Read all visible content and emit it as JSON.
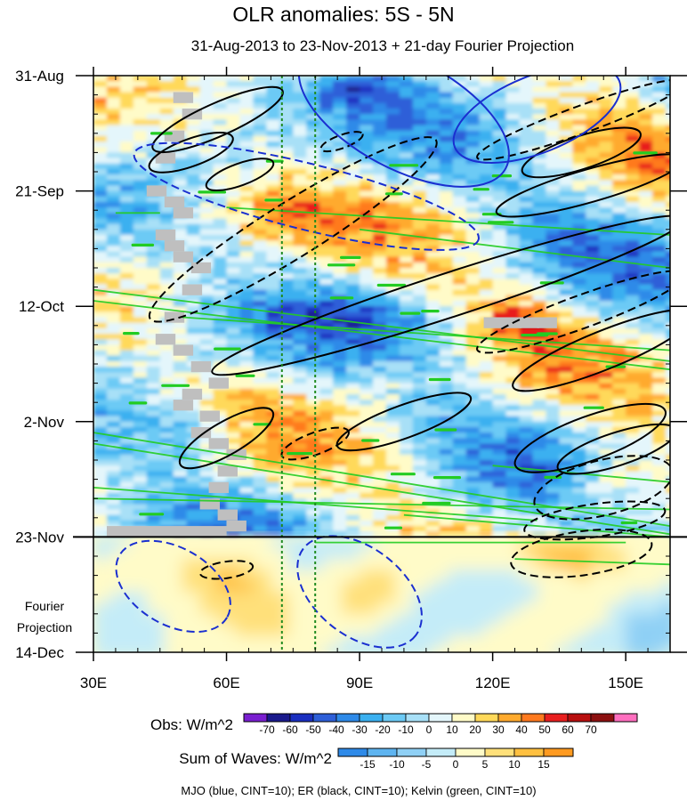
{
  "chart_data": {
    "type": "heatmap",
    "title": "OLR anomalies: 5S - 5N",
    "subtitle": "31-Aug-2013 to 23-Nov-2013 + 21-day Fourier Projection",
    "x_ticks": [
      {
        "value": 30,
        "label": "30E"
      },
      {
        "value": 60,
        "label": "60E"
      },
      {
        "value": 90,
        "label": "90E"
      },
      {
        "value": 120,
        "label": "120E"
      },
      {
        "value": 150,
        "label": "150E"
      }
    ],
    "xlim": [
      30,
      160
    ],
    "y_ticks": [
      {
        "day": 0,
        "label": "31-Aug"
      },
      {
        "day": 21,
        "label": "21-Sep"
      },
      {
        "day": 42,
        "label": "12-Oct"
      },
      {
        "day": 63,
        "label": "2-Nov"
      },
      {
        "day": 84,
        "label": "23-Nov"
      },
      {
        "day": 105,
        "label": "14-Dec"
      }
    ],
    "ylim_days": [
      0,
      105
    ],
    "observation_end_day": 84,
    "projection_label": [
      "Fourier",
      "Projection"
    ],
    "reference_longitudes": [
      72.5,
      80
    ],
    "obs_colorbar": {
      "label": "Obs: W/m^2",
      "levels": [
        -70,
        -60,
        -50,
        -40,
        -30,
        -20,
        -10,
        0,
        10,
        20,
        30,
        40,
        50,
        60,
        70
      ],
      "colors": [
        "#7a1fd0",
        "#1a1a8c",
        "#1a2fc0",
        "#2e5fd8",
        "#2e8ae8",
        "#3bb0f0",
        "#6ccaf5",
        "#a8e0f7",
        "#e4f6fb",
        "#fffbc8",
        "#ffd95a",
        "#ffaa2e",
        "#ff7a1f",
        "#e81f1f",
        "#b80f0f",
        "#8c1010",
        "#ff6fbf"
      ]
    },
    "waves_colorbar": {
      "label": "Sum of Waves: W/m^2",
      "levels": [
        -15,
        -10,
        -5,
        0,
        5,
        10,
        15
      ],
      "colors": [
        "#2e8ae8",
        "#5eb4f0",
        "#8fd0f5",
        "#c4ecf8",
        "#fffbc8",
        "#ffe07a",
        "#ffc040",
        "#ff9a20"
      ]
    },
    "legend_text": "MJO (blue, CINT=10); ER (black, CINT=10); Kelvin (green, CINT=10)",
    "wave_colors": {
      "mjo": "#1a2fd0",
      "er": "#000000",
      "kelvin": "#22cc22",
      "missing": "#bfbfbf"
    }
  }
}
